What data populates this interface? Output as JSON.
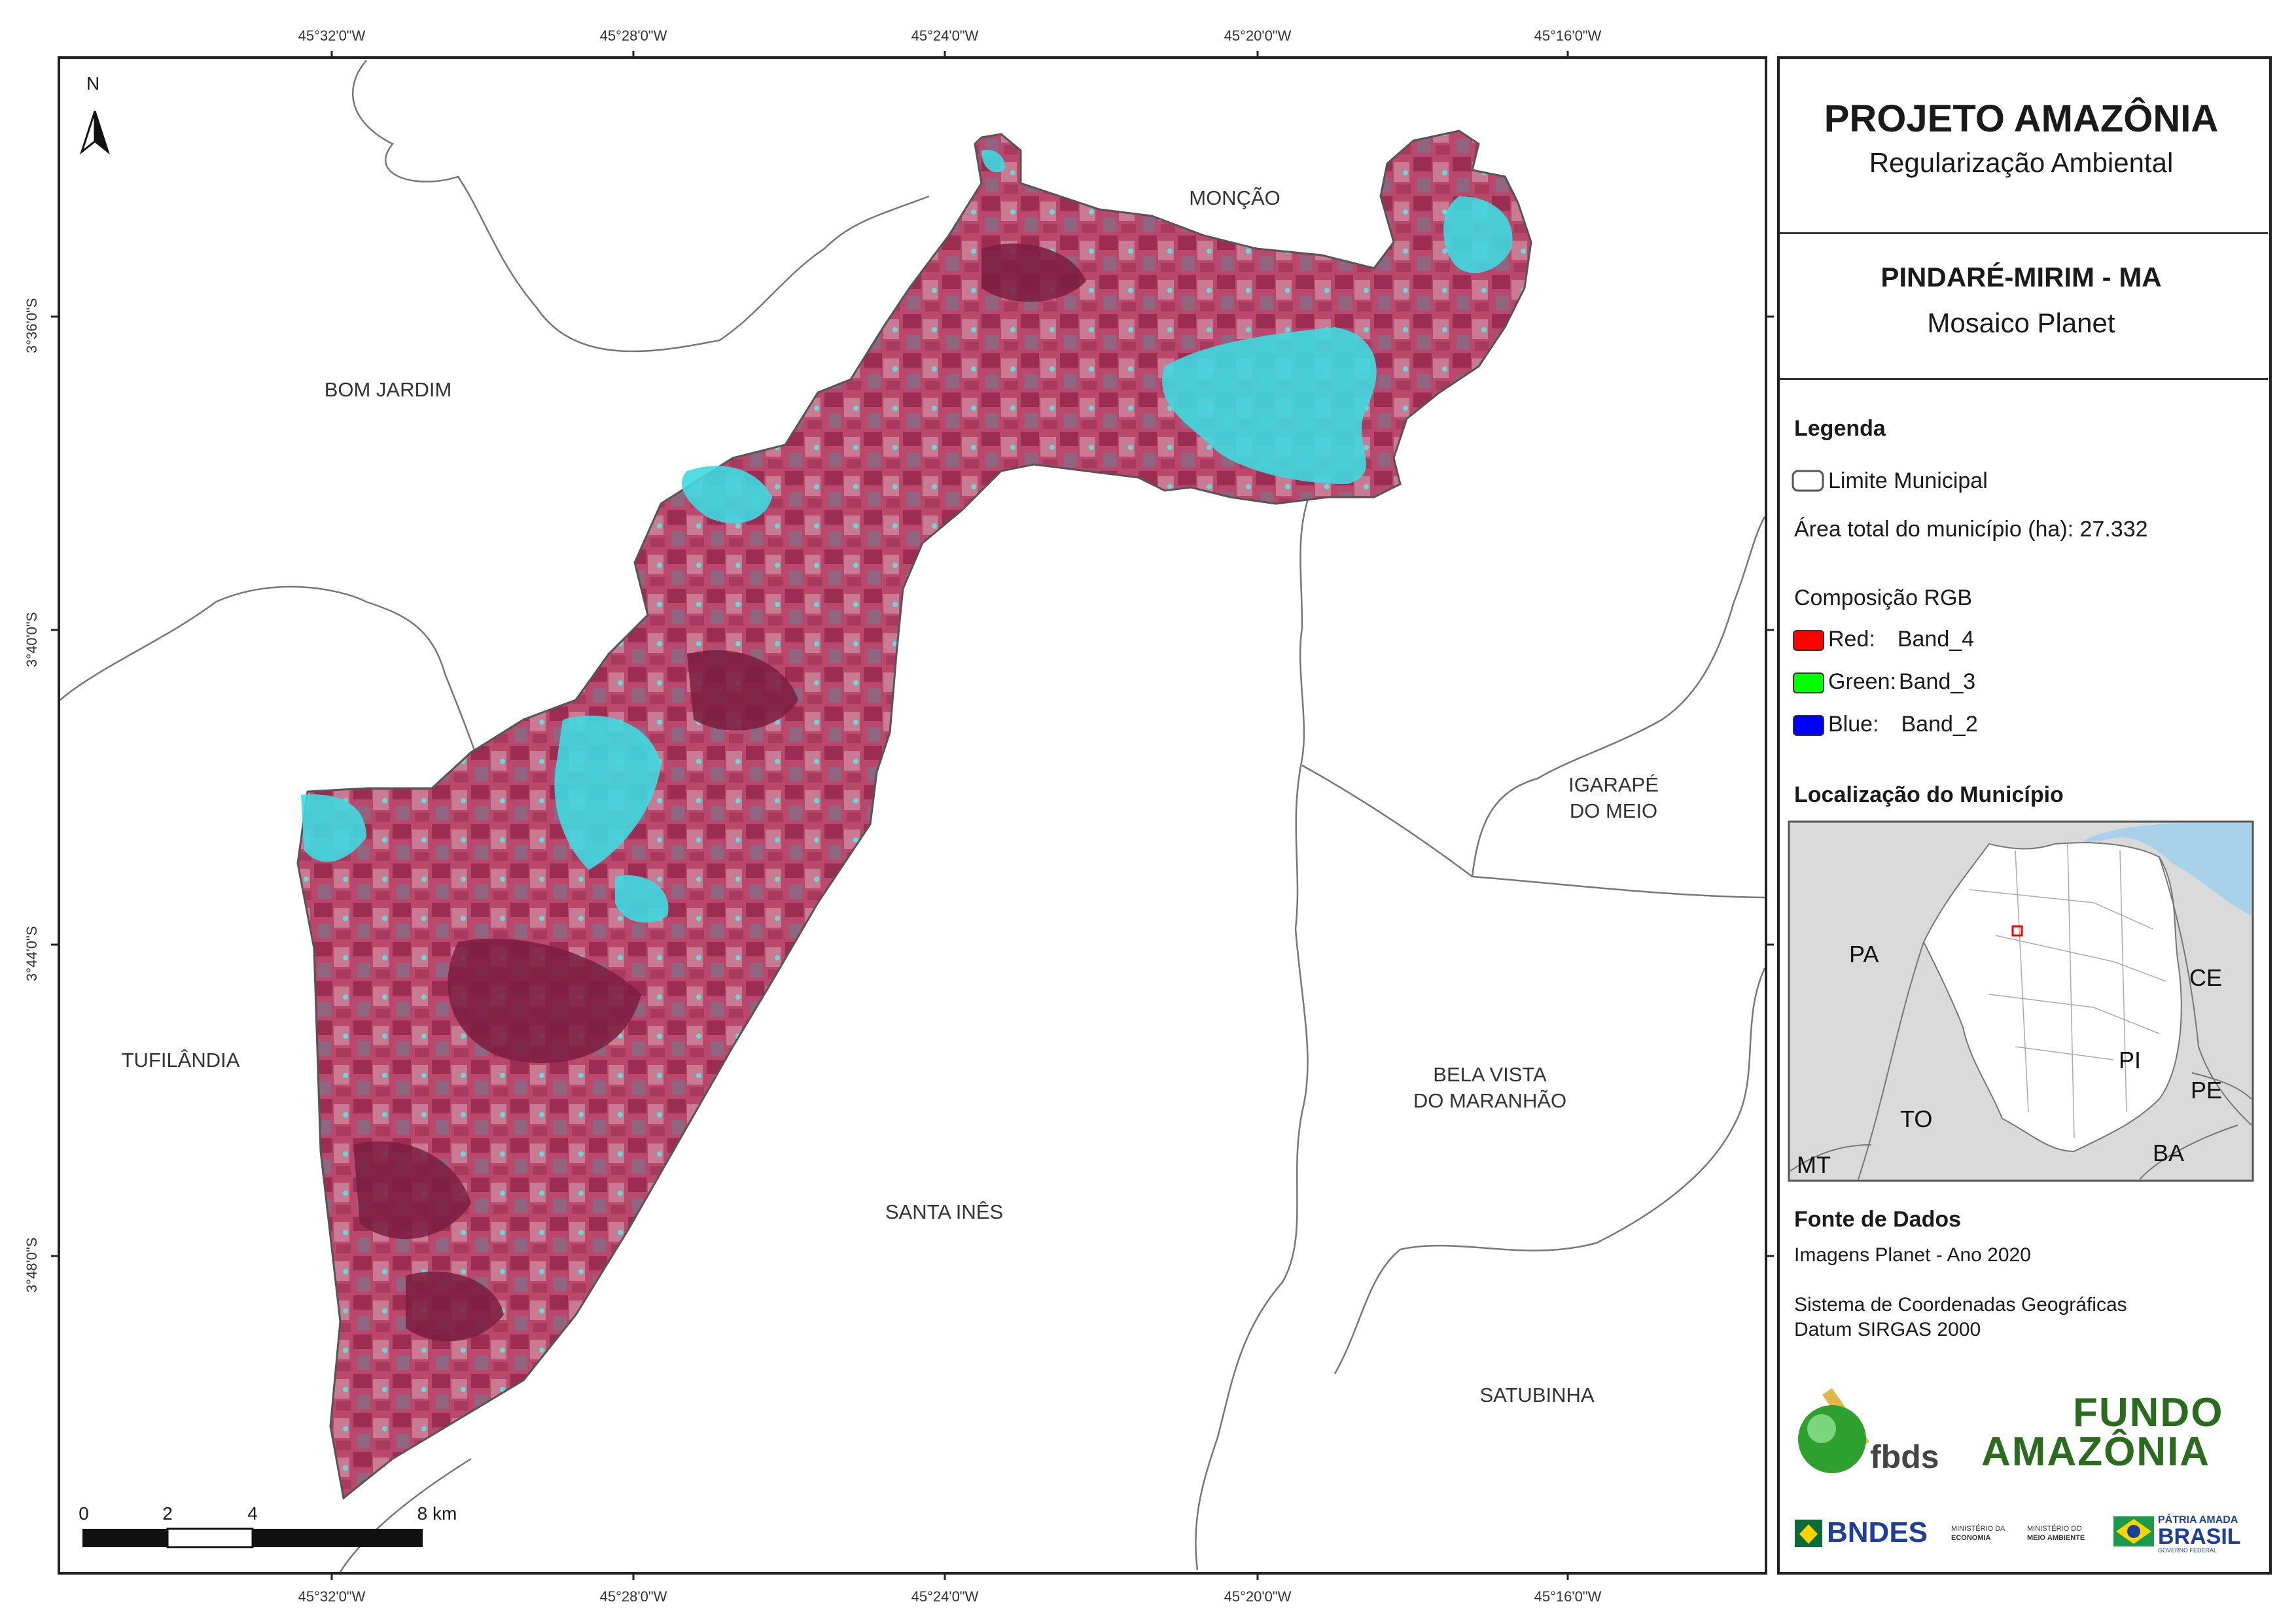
{
  "header": {
    "title": "PROJETO AMAZÔNIA",
    "subtitle": "Regularização Ambiental",
    "place": "PINDARÉ-MIRIM - MA",
    "product": "Mosaico Planet"
  },
  "north_arrow": "N",
  "coords": {
    "longitudes": [
      "45°32'0\"W",
      "45°28'0\"W",
      "45°24'0\"W",
      "45°20'0\"W",
      "45°16'0\"W"
    ],
    "latitudes": [
      "3°36'0\"S",
      "3°40'0\"S",
      "3°44'0\"S",
      "3°48'0\"S"
    ]
  },
  "municipalities": {
    "moncao": "MONÇÃO",
    "bom_jardim": "BOM JARDIM",
    "igarape_1": "IGARAPÉ",
    "igarape_2": "DO MEIO",
    "tufilandia": "TUFILÂNDIA",
    "bela_vista_1": "BELA VISTA",
    "bela_vista_2": "DO MARANHÃO",
    "santa_ines": "SANTA INÊS",
    "satubinha": "SATUBINHA"
  },
  "legend": {
    "title": "Legenda",
    "limit_label": "Limite Municipal",
    "area_label": "Área total do município (ha): 27.332",
    "rgb_title": "Composição RGB",
    "red_key": "Red:",
    "red_val": "Band_4",
    "green_key": "Green:",
    "green_val": "Band_3",
    "blue_key": "Blue:",
    "blue_val": "Band_2",
    "colors": {
      "red": "#ff0000",
      "green": "#00ff00",
      "blue": "#0000ff"
    }
  },
  "location": {
    "title": "Localização do Município",
    "states": {
      "pa": "PA",
      "ce": "CE",
      "pi": "PI",
      "to": "TO",
      "pe": "PE",
      "ba": "BA",
      "mt": "MT"
    }
  },
  "sources": {
    "title": "Fonte de Dados",
    "line1": "Imagens Planet - Ano 2020",
    "line2": "Sistema de Coordenadas Geográficas",
    "line3": "Datum SIRGAS 2000"
  },
  "scale": {
    "ticks": [
      "0",
      "2",
      "4",
      "8 km"
    ]
  },
  "logos": {
    "fbds": "fbds",
    "fundo_1": "FUNDO",
    "fundo_2": "AMAZÔNIA",
    "bndes": "BNDES",
    "min_economia_1": "MINISTÉRIO DA",
    "min_economia_2": "ECONOMIA",
    "min_ambiente_1": "MINISTÉRIO DO",
    "min_ambiente_2": "MEIO AMBIENTE",
    "patria_1": "PÁTRIA AMADA",
    "patria_2": "BRASIL",
    "governo": "GOVERNO FEDERAL"
  }
}
